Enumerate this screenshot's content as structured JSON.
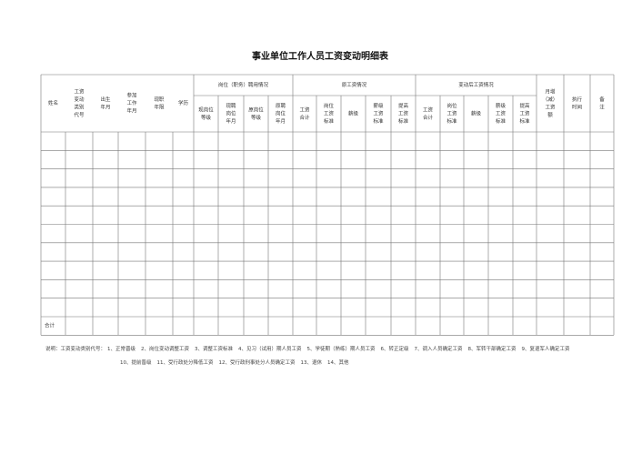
{
  "header": {
    "title": "事业单位工作人员工资变动明细表"
  },
  "table": {
    "columns": [
      {
        "label": [
          "姓名"
        ]
      },
      {
        "label": [
          "工资",
          "变动",
          "类别",
          "代号"
        ]
      },
      {
        "label": [
          "出生",
          "年月"
        ]
      },
      {
        "label": [
          "参加",
          "工作",
          "年月"
        ]
      },
      {
        "label": [
          "现职",
          "年限"
        ]
      },
      {
        "label": [
          "学历"
        ]
      },
      {
        "group": "岗位（职务）聘用情况",
        "sub": [
          [
            "现岗位",
            "等级"
          ],
          [
            "现聘",
            "岗位",
            "年月"
          ],
          [
            "原岗位",
            "等级"
          ],
          [
            "原聘",
            "岗位",
            "年月"
          ]
        ]
      },
      {
        "group": "原工资情况",
        "sub": [
          [
            "工资",
            "合计"
          ],
          [
            "岗位",
            "工资",
            "标准"
          ],
          [
            "薪级"
          ],
          [
            "薪级",
            "工资",
            "标准"
          ],
          [
            "提高",
            "工资",
            "标准"
          ]
        ]
      },
      {
        "group": "变动后工资情况",
        "sub": [
          [
            "工资",
            "合计"
          ],
          [
            "岗位",
            "工资",
            "标准"
          ],
          [
            "薪级"
          ],
          [
            "薪级",
            "工资",
            "标准"
          ],
          [
            "提高",
            "工资",
            "标准"
          ]
        ]
      },
      {
        "label": [
          "月增",
          "（减）",
          "工资",
          "额"
        ]
      },
      {
        "label": [
          "执行",
          "时间"
        ]
      },
      {
        "label": [
          "备",
          "注"
        ]
      }
    ],
    "total_label": "合计"
  },
  "notes": {
    "label": "说明：工资变动类别代号：",
    "items": [
      "1、正常晋级",
      "2、岗位变动调整工资",
      "3、调整工资标准",
      "4、见习（试用）期人员工资",
      "5、学徒期（熟练）期人员工资",
      "6、转正定级",
      "7、调入人员确定工资",
      "8、军转干部确定工资",
      "9、复退军人确定工资",
      "10、提前晋级",
      "11、受行政处分降低工资",
      "12、受行政刑事处分人员确定工资",
      "13、退休",
      "14、其他"
    ]
  }
}
